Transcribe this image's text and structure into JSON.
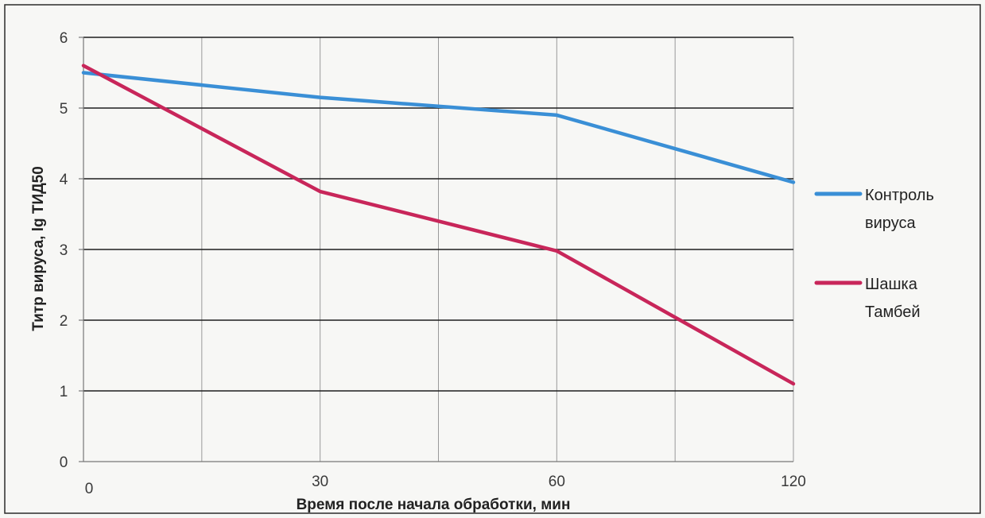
{
  "chart_data": {
    "type": "line",
    "categories": [
      "0",
      "30",
      "60",
      "120"
    ],
    "xlabel": "Время после начала обработки, мин",
    "ylabel": "Титр вируса, lg ТИД50",
    "ylim": [
      0,
      6
    ],
    "yticks": [
      "0",
      "1",
      "2",
      "3",
      "4",
      "5",
      "6"
    ],
    "grid": true,
    "legend": "right",
    "series": [
      {
        "name": "Контроль вируса",
        "name_lines": [
          "Контроль",
          "вируса"
        ],
        "color": "#3a8fd6",
        "values": [
          5.5,
          5.15,
          4.9,
          3.95
        ]
      },
      {
        "name": "Шашка Тамбей",
        "name_lines": [
          "Шашка",
          "Тамбей"
        ],
        "color": "#c8265a",
        "values": [
          5.6,
          3.82,
          2.98,
          1.1
        ]
      }
    ]
  }
}
